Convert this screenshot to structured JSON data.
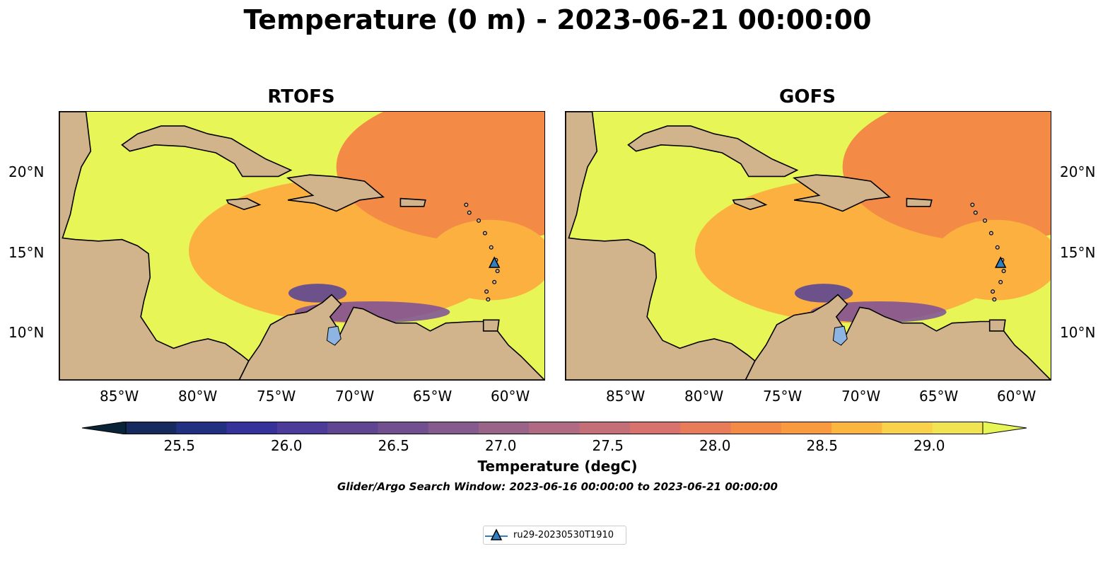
{
  "title": "Temperature (0 m) - 2023-06-21 00:00:00",
  "panels": [
    {
      "title": "RTOFS",
      "key": "rtofs"
    },
    {
      "title": "GOFS",
      "key": "gofs"
    }
  ],
  "axes": {
    "lon_ticks": [
      "85°W",
      "80°W",
      "75°W",
      "70°W",
      "65°W",
      "60°W"
    ],
    "lat_ticks": [
      "20°N",
      "15°N",
      "10°N"
    ],
    "lon_range": [
      -89,
      -58
    ],
    "lat_range": [
      7,
      24
    ]
  },
  "colorbar": {
    "label": "Temperature (degC)",
    "ticks": [
      "25.5",
      "26.0",
      "26.5",
      "27.0",
      "27.5",
      "28.0",
      "28.5",
      "29.0"
    ],
    "range": [
      25.25,
      29.25
    ],
    "step": 0.25,
    "colors": [
      "#0b2336",
      "#172a5e",
      "#223082",
      "#36329a",
      "#4d3b99",
      "#604593",
      "#725090",
      "#855a8c",
      "#9a6489",
      "#b06a84",
      "#c46e78",
      "#d8726c",
      "#e87c58",
      "#f38a46",
      "#f89a3d",
      "#fbb63f",
      "#f9d14a",
      "#f1e452",
      "#e8f556"
    ]
  },
  "search_window": "Glider/Argo Search Window: 2023-06-16 00:00:00 to 2023-06-21 00:00:00",
  "legend": {
    "label": "ru29-20230530T1910"
  },
  "glider": {
    "lon": -61.2,
    "lat": 14.4,
    "color": "#2f7fc1"
  },
  "colors": {
    "land": "#d2b48c",
    "lake": "#8db4e2",
    "ocean_warm": "#fbb040",
    "ocean_hot": "#f38a46",
    "ocean_cool": "#7b4f9a",
    "shelf": "#e8f556"
  }
}
